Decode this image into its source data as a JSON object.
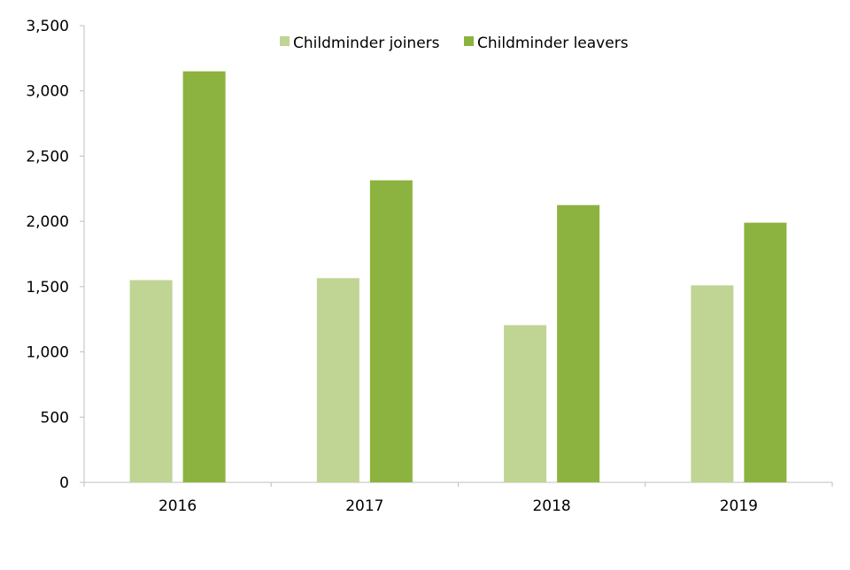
{
  "chart_data": {
    "type": "bar",
    "categories": [
      "2016",
      "2017",
      "2018",
      "2019"
    ],
    "series": [
      {
        "name": "Childminder joiners",
        "values": [
          1550,
          1565,
          1205,
          1510
        ],
        "color": "#c0d494"
      },
      {
        "name": "Childminder leavers",
        "values": [
          3150,
          2315,
          2125,
          1990
        ],
        "color": "#8cb33f"
      }
    ],
    "y_ticks": [
      "0",
      "500",
      "1,000",
      "1,500",
      "2,000",
      "2,500",
      "3,000",
      "3,500"
    ],
    "ylim": [
      0,
      3500
    ],
    "title": "",
    "xlabel": "",
    "ylabel": "",
    "grid": false,
    "legend_position": "top-center"
  },
  "colors": {
    "axis": "#bfbfbf"
  }
}
